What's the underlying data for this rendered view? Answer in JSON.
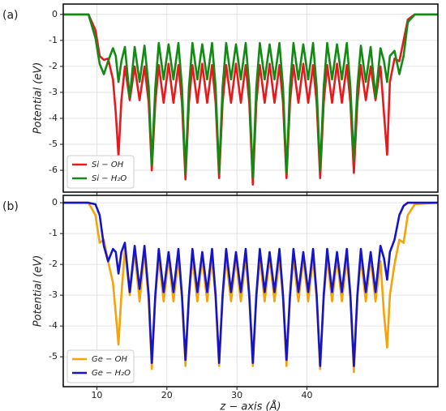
{
  "chart_data": [
    {
      "type": "line",
      "panel_label": "(a)",
      "ylabel": "Potential (eV)",
      "xlim": [
        5.2,
        58.7
      ],
      "ylim": [
        -6.84,
        0.4
      ],
      "xticks": [
        10,
        20,
        30,
        40
      ],
      "yticks": [
        0,
        -1,
        -2,
        -3,
        -4,
        -5,
        -6
      ],
      "grid": true,
      "legend": "lower left",
      "x": [
        5.2,
        8.8,
        9.8,
        10.4,
        11.0,
        11.6,
        12.3,
        12.7,
        13.09,
        13.5,
        14.0,
        14.7,
        15.4,
        16.1,
        16.8,
        17.4,
        17.84,
        18.34,
        18.84,
        19.54,
        20.24,
        20.94,
        21.64,
        22.15,
        22.65,
        23.15,
        23.65,
        24.35,
        25.05,
        25.75,
        26.45,
        26.96,
        27.46,
        27.96,
        28.46,
        29.16,
        29.86,
        30.56,
        31.26,
        31.77,
        32.27,
        32.77,
        33.27,
        33.97,
        34.67,
        35.37,
        36.07,
        36.58,
        37.08,
        37.58,
        38.08,
        38.78,
        39.48,
        40.18,
        40.88,
        41.39,
        41.89,
        42.39,
        42.89,
        43.59,
        44.29,
        44.99,
        45.69,
        46.2,
        46.7,
        47.2,
        47.7,
        48.4,
        49.1,
        49.8,
        50.5,
        51.0,
        51.45,
        51.85,
        52.5,
        53.2,
        53.8,
        54.4,
        55.4,
        58.7
      ],
      "series": [
        {
          "name": "Si − OH",
          "color": "#e8191c",
          "values": [
            0,
            0,
            -0.6,
            -1.6,
            -1.75,
            -1.7,
            -2.5,
            -3.8,
            -5.45,
            -3.3,
            -2.0,
            -3.3,
            -2.0,
            -3.3,
            -2.0,
            -3.4,
            -6.0,
            -3.4,
            -1.95,
            -3.4,
            -1.9,
            -3.4,
            -1.95,
            -3.4,
            -6.35,
            -3.4,
            -1.95,
            -3.4,
            -1.9,
            -3.4,
            -1.95,
            -3.4,
            -6.3,
            -3.4,
            -1.95,
            -3.4,
            -1.9,
            -3.4,
            -1.95,
            -3.4,
            -6.55,
            -3.4,
            -1.95,
            -3.4,
            -1.9,
            -3.4,
            -1.95,
            -3.4,
            -6.3,
            -3.4,
            -1.95,
            -3.4,
            -1.9,
            -3.4,
            -1.95,
            -3.4,
            -6.3,
            -3.4,
            -1.95,
            -3.4,
            -1.9,
            -3.4,
            -1.95,
            -3.4,
            -6.1,
            -3.4,
            -1.95,
            -3.3,
            -2.0,
            -3.3,
            -2.0,
            -3.8,
            -5.4,
            -2.6,
            -1.7,
            -1.8,
            -1.0,
            -0.2,
            0,
            0
          ]
        },
        {
          "name": "Si − H₂O",
          "color": "#138a13",
          "values": [
            0,
            0,
            -0.9,
            -1.9,
            -2.3,
            -1.8,
            -1.3,
            -1.6,
            -2.6,
            -1.8,
            -1.25,
            -3.2,
            -1.25,
            -2.6,
            -1.2,
            -2.8,
            -5.8,
            -2.8,
            -1.1,
            -2.5,
            -1.15,
            -2.5,
            -1.1,
            -2.8,
            -6.1,
            -2.8,
            -1.1,
            -2.5,
            -1.15,
            -2.5,
            -1.1,
            -2.8,
            -6.1,
            -2.8,
            -1.1,
            -2.5,
            -1.15,
            -2.5,
            -1.1,
            -2.8,
            -6.3,
            -2.8,
            -1.1,
            -2.5,
            -1.15,
            -2.5,
            -1.1,
            -2.8,
            -6.1,
            -2.8,
            -1.1,
            -2.5,
            -1.15,
            -2.5,
            -1.1,
            -2.8,
            -6.0,
            -2.8,
            -1.1,
            -2.5,
            -1.15,
            -2.5,
            -1.1,
            -2.8,
            -5.6,
            -2.8,
            -1.2,
            -2.6,
            -1.25,
            -3.2,
            -1.3,
            -1.8,
            -2.6,
            -1.6,
            -1.4,
            -2.3,
            -1.6,
            -0.3,
            0,
            0
          ]
        }
      ]
    },
    {
      "type": "line",
      "panel_label": "(b)",
      "ylabel": "Potential (eV)",
      "xlabel": "z − axis (Å)",
      "xlim": [
        5.2,
        58.7
      ],
      "ylim": [
        -5.97,
        0.24
      ],
      "xticks": [
        10,
        20,
        30,
        40
      ],
      "yticks": [
        0,
        -1,
        -2,
        -3,
        -4,
        -5
      ],
      "grid": true,
      "legend": "lower left",
      "x": [
        5.2,
        8.8,
        9.8,
        10.4,
        11.0,
        11.6,
        12.3,
        12.7,
        13.09,
        13.5,
        14.0,
        14.7,
        15.4,
        16.1,
        16.8,
        17.4,
        17.84,
        18.34,
        18.84,
        19.54,
        20.24,
        20.94,
        21.64,
        22.15,
        22.65,
        23.15,
        23.65,
        24.35,
        25.05,
        25.75,
        26.45,
        26.96,
        27.46,
        27.96,
        28.46,
        29.16,
        29.86,
        30.56,
        31.26,
        31.77,
        32.27,
        32.77,
        33.27,
        33.97,
        34.67,
        35.37,
        36.07,
        36.58,
        37.08,
        37.58,
        38.08,
        38.78,
        39.48,
        40.18,
        40.88,
        41.39,
        41.89,
        42.39,
        42.89,
        43.59,
        44.29,
        44.99,
        45.69,
        46.2,
        46.7,
        47.2,
        47.7,
        48.4,
        49.1,
        49.8,
        50.5,
        51.0,
        51.45,
        51.85,
        52.5,
        53.2,
        53.8,
        54.4,
        55.4,
        58.7
      ],
      "series": [
        {
          "name": "Ge − OH",
          "color": "#f5a30a",
          "values": [
            0,
            0,
            -0.4,
            -1.3,
            -1.2,
            -1.9,
            -2.6,
            -3.6,
            -4.6,
            -3.0,
            -1.5,
            -3.0,
            -1.6,
            -3.2,
            -1.6,
            -3.2,
            -5.4,
            -3.1,
            -1.8,
            -3.2,
            -1.8,
            -3.2,
            -1.8,
            -3.1,
            -5.3,
            -3.1,
            -1.8,
            -3.2,
            -1.8,
            -3.2,
            -1.8,
            -3.1,
            -5.3,
            -3.1,
            -1.8,
            -3.2,
            -1.8,
            -3.2,
            -1.8,
            -3.1,
            -5.3,
            -3.1,
            -1.8,
            -3.2,
            -1.8,
            -3.2,
            -1.8,
            -3.1,
            -5.3,
            -3.1,
            -1.8,
            -3.2,
            -1.8,
            -3.2,
            -1.8,
            -3.1,
            -5.4,
            -3.1,
            -1.8,
            -3.2,
            -1.8,
            -3.2,
            -1.8,
            -3.1,
            -5.5,
            -3.1,
            -1.8,
            -3.2,
            -1.8,
            -3.2,
            -1.9,
            -3.6,
            -4.7,
            -3.0,
            -2.0,
            -1.2,
            -1.3,
            -0.4,
            -0.05,
            0
          ]
        },
        {
          "name": "Ge − H₂O",
          "color": "#1414c8",
          "values": [
            0,
            0,
            -0.05,
            -0.4,
            -1.4,
            -1.9,
            -1.5,
            -1.6,
            -2.3,
            -1.6,
            -1.3,
            -2.9,
            -1.4,
            -2.8,
            -1.4,
            -3.0,
            -5.2,
            -3.0,
            -1.5,
            -2.9,
            -1.6,
            -2.9,
            -1.5,
            -3.0,
            -5.1,
            -3.0,
            -1.5,
            -2.9,
            -1.6,
            -2.9,
            -1.5,
            -3.0,
            -5.2,
            -3.0,
            -1.5,
            -2.9,
            -1.6,
            -2.9,
            -1.5,
            -3.0,
            -5.2,
            -3.0,
            -1.5,
            -2.9,
            -1.6,
            -2.9,
            -1.5,
            -3.0,
            -5.1,
            -3.0,
            -1.5,
            -2.9,
            -1.6,
            -2.9,
            -1.5,
            -3.0,
            -5.3,
            -3.0,
            -1.5,
            -2.9,
            -1.6,
            -2.9,
            -1.5,
            -3.0,
            -5.3,
            -3.0,
            -1.5,
            -2.9,
            -1.6,
            -2.9,
            -1.4,
            -1.8,
            -2.5,
            -1.6,
            -1.2,
            -0.4,
            -0.1,
            0,
            0,
            0
          ]
        }
      ]
    }
  ]
}
